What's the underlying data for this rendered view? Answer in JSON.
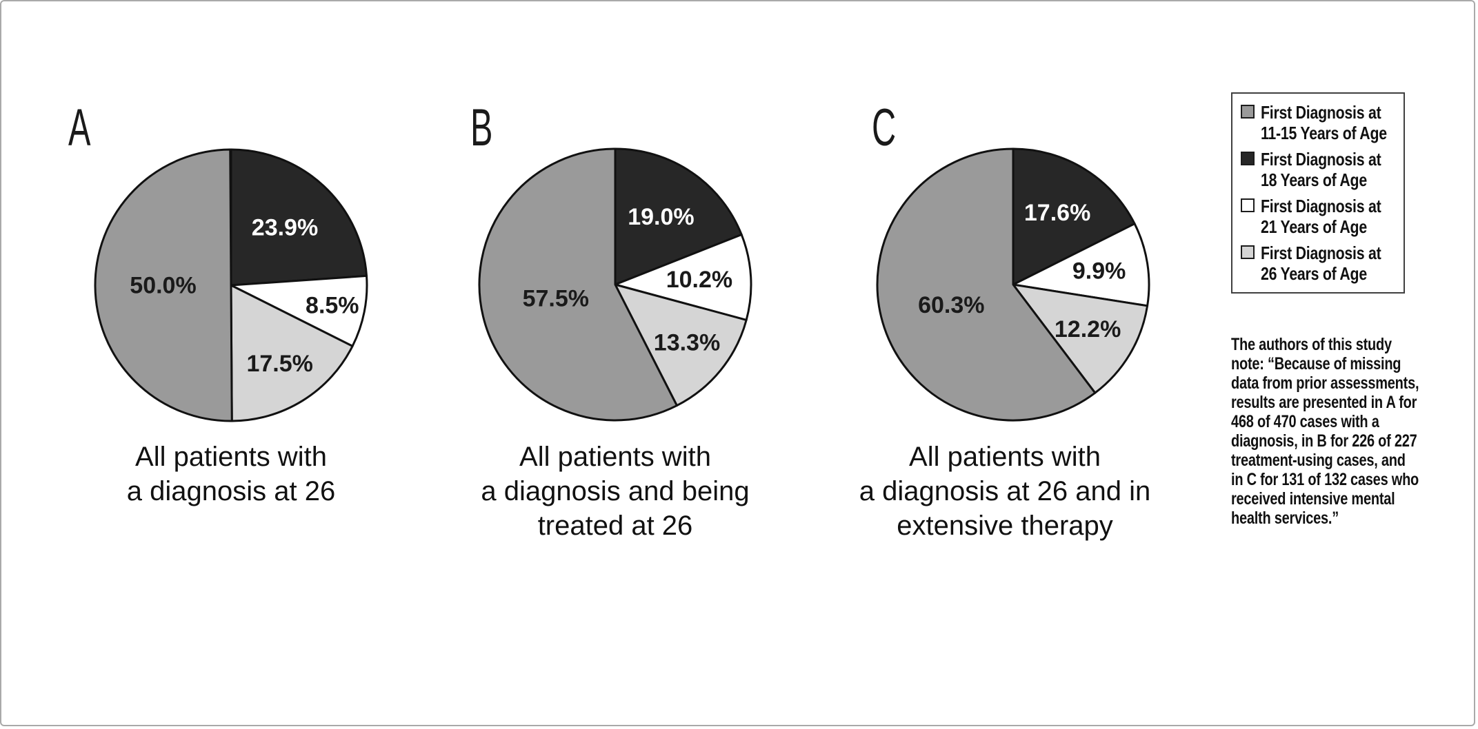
{
  "figure": {
    "description": "Three-panel grayscale pie chart figure comparing age at first diagnosis across patient groups",
    "background": "#ffffff"
  },
  "colors": {
    "slice_gray": "#9a9a9a",
    "slice_black": "#272727",
    "slice_white": "#ffffff",
    "slice_light_gray": "#d5d5d5",
    "outline": "#111111",
    "figure_border": "#a9a9a9",
    "legend_border": "#3f3f3f",
    "text": "#111111"
  },
  "chart_data": [
    {
      "type": "pie",
      "panel": "A",
      "caption_lines": [
        "All patients with",
        "a diagnosis at 26"
      ],
      "start_angle_deg": 0,
      "direction": "clockwise",
      "slices": [
        {
          "name": "First Diagnosis at 18 Years of Age",
          "label": "23.9%",
          "value": 23.9,
          "color": "#272727",
          "text_color": "#ffffff",
          "label_radius": 0.58
        },
        {
          "name": "First Diagnosis at 21 Years of Age",
          "label": "8.5%",
          "value": 8.5,
          "color": "#ffffff",
          "text_color": "#1a1a1a",
          "label_radius": 0.76
        },
        {
          "name": "First Diagnosis at 26 Years of Age",
          "label": "17.5%",
          "value": 17.5,
          "color": "#d5d5d5",
          "text_color": "#1a1a1a",
          "label_radius": 0.68
        },
        {
          "name": "First Diagnosis at 11-15 Years of Age",
          "label": "50.0%",
          "value": 50.0,
          "color": "#9a9a9a",
          "text_color": "#1a1a1a",
          "label_radius": 0.5
        }
      ]
    },
    {
      "type": "pie",
      "panel": "B",
      "caption_lines": [
        "All patients with",
        "a diagnosis and being",
        "treated at 26"
      ],
      "start_angle_deg": 0,
      "direction": "clockwise",
      "slices": [
        {
          "name": "First Diagnosis at 18 Years of Age",
          "label": "19.0%",
          "value": 19.0,
          "color": "#272727",
          "text_color": "#ffffff",
          "label_radius": 0.6
        },
        {
          "name": "First Diagnosis at 21 Years of Age",
          "label": "10.2%",
          "value": 10.2,
          "color": "#ffffff",
          "text_color": "#1a1a1a",
          "label_radius": 0.62
        },
        {
          "name": "First Diagnosis at 26 Years of Age",
          "label": "13.3%",
          "value": 13.3,
          "color": "#d5d5d5",
          "text_color": "#1a1a1a",
          "label_radius": 0.68
        },
        {
          "name": "First Diagnosis at 11-15 Years of Age",
          "label": "57.5%",
          "value": 57.5,
          "color": "#9a9a9a",
          "text_color": "#1a1a1a",
          "label_radius": 0.45
        }
      ]
    },
    {
      "type": "pie",
      "panel": "C",
      "caption_lines": [
        "All patients with",
        "a diagnosis at 26 and in",
        "extensive therapy"
      ],
      "start_angle_deg": 0,
      "direction": "clockwise",
      "slices": [
        {
          "name": "First Diagnosis at 18 Years of Age",
          "label": "17.6%",
          "value": 17.6,
          "color": "#272727",
          "text_color": "#ffffff",
          "label_radius": 0.62
        },
        {
          "name": "First Diagnosis at 21 Years of Age",
          "label": "9.9%",
          "value": 9.9,
          "color": "#ffffff",
          "text_color": "#1a1a1a",
          "label_radius": 0.64
        },
        {
          "name": "First Diagnosis at 26 Years of Age",
          "label": "12.2%",
          "value": 12.2,
          "color": "#d5d5d5",
          "text_color": "#1a1a1a",
          "label_radius": 0.64
        },
        {
          "name": "First Diagnosis at 11-15 Years of Age",
          "label": "60.3%",
          "value": 60.3,
          "color": "#9a9a9a",
          "text_color": "#1a1a1a",
          "label_radius": 0.48
        }
      ]
    }
  ],
  "legend": {
    "entries": [
      {
        "color": "#9a9a9a",
        "line1": "First Diagnosis at",
        "line2": "11-15 Years of Age"
      },
      {
        "color": "#272727",
        "line1": "First Diagnosis at",
        "line2": "18 Years of Age"
      },
      {
        "color": "#ffffff",
        "line1": "First Diagnosis at",
        "line2": "21 Years of Age"
      },
      {
        "color": "#d5d5d5",
        "line1": "First Diagnosis at",
        "line2": "26 Years of Age"
      }
    ]
  },
  "note": {
    "lines": [
      "The authors of this study",
      "note: “Because of missing",
      "data from prior assessments,",
      "results are presented in A for",
      "468 of 470 cases with a",
      "diagnosis, in B for 226 of 227",
      "treatment-using cases, and",
      "in C for 131 of 132 cases who",
      "received intensive mental",
      "health services.”"
    ]
  }
}
